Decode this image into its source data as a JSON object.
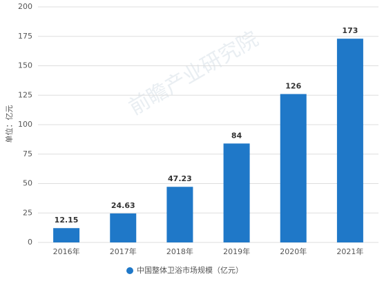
{
  "chart_data": {
    "type": "bar",
    "y_label": "单位：亿元",
    "watermark": "前瞻产业研究院",
    "categories": [
      "2016年",
      "2017年",
      "2018年",
      "2019年",
      "2020年",
      "2021年"
    ],
    "series": [
      {
        "name": "中国整体卫浴市场规模（亿元）",
        "color": "#1f78c8",
        "values": [
          12.15,
          24.63,
          47.23,
          84,
          126,
          173
        ]
      }
    ],
    "ylim": [
      0,
      200
    ],
    "yticks": [
      0,
      25,
      50,
      75,
      100,
      125,
      150,
      175,
      200
    ],
    "grid": true,
    "legend": "bottom"
  }
}
